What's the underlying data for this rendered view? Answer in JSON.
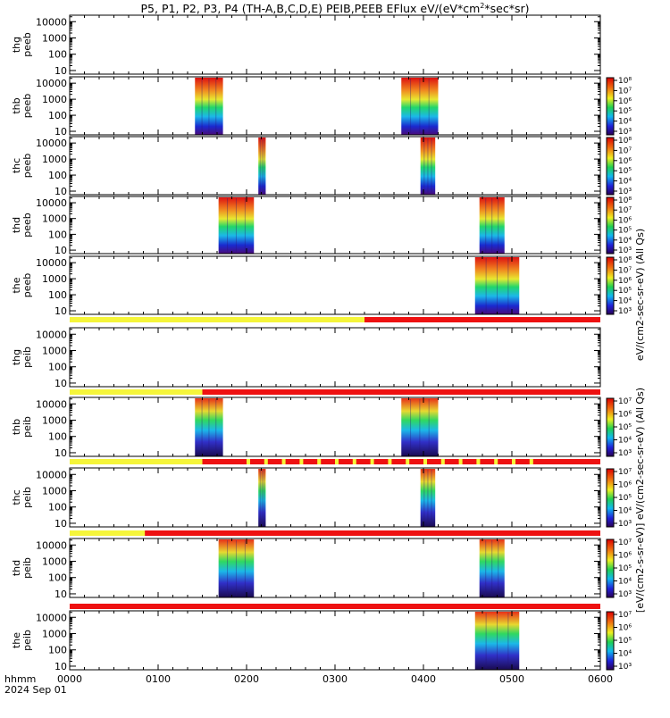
{
  "title_parts": [
    "P5, P1, P2, P3, P4 (TH-A,B,C,D,E) PEIB,PEEB EFlux eV/(eV*cm",
    "2",
    "*sec*sr)"
  ],
  "bottom_left": {
    "line1": "hhmm",
    "line2": "2024 Sep 01"
  },
  "colorbar_ee_label": "eV/(cm2-sec-sr-eV) (All Qs)",
  "colorbar_ei_label": "[eV/(cm2-s-sr-eV)] eV/(cm2-sec-sr-eV) (All Qs)",
  "colorbar_ee_ticks": [
    "10³",
    "10⁴",
    "10⁵",
    "10⁶",
    "10⁷",
    "10⁸"
  ],
  "colorbar_ei_ticks": [
    "10³",
    "10⁴",
    "10⁵",
    "10⁶",
    "10⁷"
  ],
  "colors": {
    "flag_yellow": "#f5f53a",
    "flag_red": "#ee1111"
  },
  "chart_data": {
    "type": "heatmap",
    "x_ticks": [
      "0000",
      "0100",
      "0200",
      "0300",
      "0400",
      "0500",
      "0600"
    ],
    "xlim_hhmm": [
      "0000",
      "0600"
    ],
    "y_ticks": [
      "10",
      "100",
      "1000",
      "10000"
    ],
    "y_scale": "log",
    "colormap": "rainbow (purple-blue-cyan-green-yellow-red)",
    "panels": [
      {
        "label": [
          "thg",
          "peeb"
        ],
        "species": "electron",
        "colorbar": false,
        "intervals": []
      },
      {
        "label": [
          "thb",
          "peeb"
        ],
        "species": "electron",
        "colorbar": true,
        "intervals": [
          {
            "start_min": 85,
            "end_min": 104
          },
          {
            "start_min": 225,
            "end_min": 250
          }
        ]
      },
      {
        "label": [
          "thc",
          "peeb"
        ],
        "species": "electron",
        "colorbar": true,
        "intervals": [
          {
            "start_min": 128,
            "end_min": 133
          },
          {
            "start_min": 238,
            "end_min": 248
          }
        ]
      },
      {
        "label": [
          "thd",
          "peeb"
        ],
        "species": "electron",
        "colorbar": true,
        "intervals": [
          {
            "start_min": 101,
            "end_min": 125
          },
          {
            "start_min": 278,
            "end_min": 295
          }
        ]
      },
      {
        "label": [
          "the",
          "peeb"
        ],
        "species": "electron",
        "colorbar": true,
        "intervals": [
          {
            "start_min": 275,
            "end_min": 305
          }
        ]
      },
      {
        "label": [
          "thg",
          "peib"
        ],
        "species": "ion",
        "colorbar": false,
        "intervals": []
      },
      {
        "label": [
          "thb",
          "peib"
        ],
        "species": "ion",
        "colorbar": true,
        "intervals": [
          {
            "start_min": 85,
            "end_min": 104
          },
          {
            "start_min": 225,
            "end_min": 250
          }
        ]
      },
      {
        "label": [
          "thc",
          "peib"
        ],
        "species": "ion",
        "colorbar": true,
        "intervals": [
          {
            "start_min": 128,
            "end_min": 133
          },
          {
            "start_min": 238,
            "end_min": 248
          }
        ]
      },
      {
        "label": [
          "thd",
          "peib"
        ],
        "species": "ion",
        "colorbar": true,
        "intervals": [
          {
            "start_min": 101,
            "end_min": 125
          },
          {
            "start_min": 278,
            "end_min": 295
          }
        ]
      },
      {
        "label": [
          "the",
          "peib"
        ],
        "species": "ion",
        "colorbar": true,
        "intervals": [
          {
            "start_min": 275,
            "end_min": 305
          }
        ]
      }
    ],
    "flag_bars": [
      {
        "yellow_until_min": 200
      },
      {
        "yellow_until_min": 90
      },
      {
        "yellow_until_min": 90,
        "intermittent": true
      },
      {
        "yellow_until_min": 51
      },
      {
        "yellow_until_min": 0
      }
    ]
  }
}
